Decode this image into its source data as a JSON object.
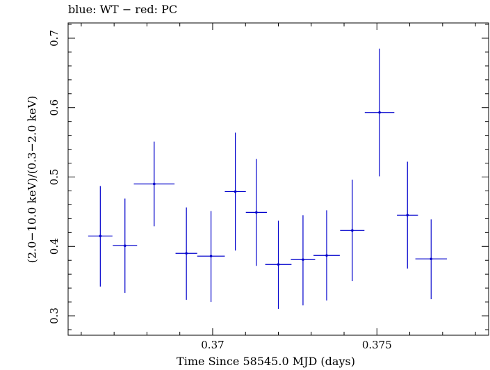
{
  "chart_data": {
    "type": "scatter",
    "title": "blue: WT − red: PC",
    "xlabel": "Time Since 58545.0 MJD (days)",
    "ylabel": "(2.0−10.0 keV)/(0.3−2.0 keV)",
    "xlim": [
      0.3656,
      0.3784
    ],
    "ylim": [
      0.272,
      0.722
    ],
    "xticks": [
      {
        "value": 0.37,
        "label": "0.37"
      },
      {
        "value": 0.375,
        "label": "0.375"
      }
    ],
    "yticks": [
      {
        "value": 0.3,
        "label": "0.3"
      },
      {
        "value": 0.4,
        "label": "0.4"
      },
      {
        "value": 0.5,
        "label": "0.5"
      },
      {
        "value": 0.6,
        "label": "0.6"
      },
      {
        "value": 0.7,
        "label": "0.7"
      }
    ],
    "series": [
      {
        "color": "#0000cc",
        "points": [
          {
            "x": 0.36658,
            "xerr": 0.00037,
            "y": 0.415,
            "yerr_low": 0.073,
            "yerr_high": 0.072
          },
          {
            "x": 0.36733,
            "xerr": 0.00037,
            "y": 0.401,
            "yerr_low": 0.068,
            "yerr_high": 0.068
          },
          {
            "x": 0.36822,
            "xerr": 0.00062,
            "y": 0.49,
            "yerr_low": 0.061,
            "yerr_high": 0.061
          },
          {
            "x": 0.3692,
            "xerr": 0.00033,
            "y": 0.39,
            "yerr_low": 0.067,
            "yerr_high": 0.066
          },
          {
            "x": 0.36995,
            "xerr": 0.00042,
            "y": 0.386,
            "yerr_low": 0.066,
            "yerr_high": 0.065
          },
          {
            "x": 0.37069,
            "xerr": 0.00032,
            "y": 0.479,
            "yerr_low": 0.085,
            "yerr_high": 0.085
          },
          {
            "x": 0.37133,
            "xerr": 0.00032,
            "y": 0.449,
            "yerr_low": 0.077,
            "yerr_high": 0.077
          },
          {
            "x": 0.372,
            "xerr": 0.0004,
            "y": 0.374,
            "yerr_low": 0.064,
            "yerr_high": 0.063
          },
          {
            "x": 0.37275,
            "xerr": 0.00037,
            "y": 0.381,
            "yerr_low": 0.066,
            "yerr_high": 0.064
          },
          {
            "x": 0.37347,
            "xerr": 0.0004,
            "y": 0.387,
            "yerr_low": 0.065,
            "yerr_high": 0.065
          },
          {
            "x": 0.37425,
            "xerr": 0.00037,
            "y": 0.423,
            "yerr_low": 0.073,
            "yerr_high": 0.073
          },
          {
            "x": 0.37508,
            "xerr": 0.00045,
            "y": 0.593,
            "yerr_low": 0.092,
            "yerr_high": 0.092
          },
          {
            "x": 0.37593,
            "xerr": 0.00032,
            "y": 0.445,
            "yerr_low": 0.077,
            "yerr_high": 0.077
          },
          {
            "x": 0.37665,
            "xerr": 0.00048,
            "y": 0.382,
            "yerr_low": 0.058,
            "yerr_high": 0.057
          }
        ]
      }
    ],
    "grid": false,
    "legend": "none"
  }
}
